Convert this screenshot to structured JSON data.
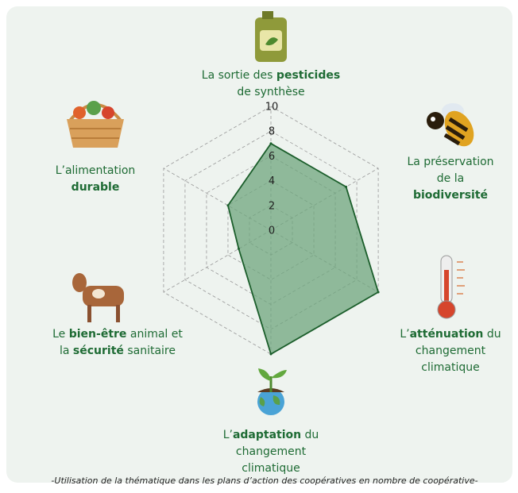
{
  "chart_data": {
    "type": "radar",
    "categories": [
      [
        [
          {
            "text": "La sortie des ",
            "bold": false
          },
          {
            "text": "pesticides",
            "bold": true
          }
        ],
        [
          {
            "text": "de synthèse",
            "bold": false
          }
        ]
      ],
      [
        [
          {
            "text": "La préservation",
            "bold": false
          }
        ],
        [
          {
            "text": "de la",
            "bold": false
          }
        ],
        [
          {
            "text": "biodiversité",
            "bold": true
          }
        ]
      ],
      [
        [
          {
            "text": "L’",
            "bold": false
          },
          {
            "text": "atténuation",
            "bold": true
          },
          {
            "text": " du",
            "bold": false
          }
        ],
        [
          {
            "text": "changement",
            "bold": false
          }
        ],
        [
          {
            "text": "climatique",
            "bold": false
          }
        ]
      ],
      [
        [
          {
            "text": "L’",
            "bold": false
          },
          {
            "text": "adaptation",
            "bold": true
          },
          {
            "text": " du",
            "bold": false
          }
        ],
        [
          {
            "text": "changement",
            "bold": false
          }
        ],
        [
          {
            "text": "climatique",
            "bold": false
          }
        ]
      ],
      [
        [
          {
            "text": "Le ",
            "bold": false
          },
          {
            "text": "bien-être",
            "bold": true
          },
          {
            "text": " animal et",
            "bold": false
          }
        ],
        [
          {
            "text": "la ",
            "bold": false
          },
          {
            "text": "sécurité",
            "bold": true
          },
          {
            "text": " sanitaire",
            "bold": false
          }
        ]
      ],
      [
        [
          {
            "text": "L’alimentation",
            "bold": false
          }
        ],
        [
          {
            "text": "durable",
            "bold": true
          }
        ]
      ]
    ],
    "values": [
      7,
      7,
      10,
      10,
      3,
      4
    ],
    "rlim": [
      0,
      10
    ],
    "rticks": [
      0,
      2,
      4,
      6,
      8,
      10
    ],
    "fill_color": "#6fa57d",
    "line_color": "#1b5e2b",
    "grid": true,
    "footnote": "-Utilisation de la thématique dans les plans d’action des coopératives en nombre de coopérative-"
  }
}
